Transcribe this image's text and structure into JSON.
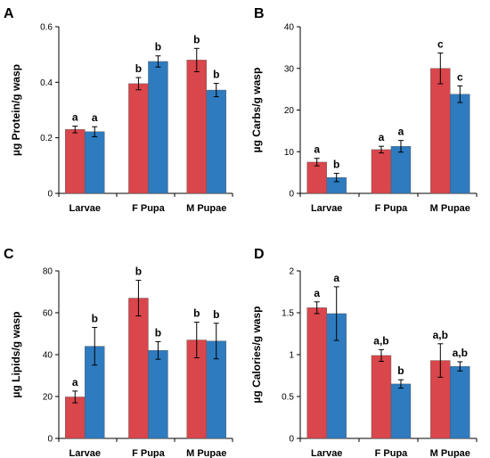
{
  "chart_data": [
    {
      "type": "bar",
      "panel": "A",
      "ylabel": "µg Protein/g wasp",
      "ylim": [
        0,
        0.6
      ],
      "yticks": [
        "0",
        "0.2",
        "0.4",
        "0.6"
      ],
      "ytick_values": [
        0,
        0.2,
        0.4,
        0.6
      ],
      "categories": [
        "Larvae",
        "F Pupa",
        "M Pupae"
      ],
      "series": [
        {
          "values": [
            0.23,
            0.395,
            0.48
          ],
          "errors": [
            0.012,
            0.022,
            0.042
          ],
          "labels": [
            "a",
            "b",
            "b"
          ]
        },
        {
          "values": [
            0.222,
            0.475,
            0.372
          ],
          "errors": [
            0.018,
            0.02,
            0.024
          ],
          "labels": [
            "a",
            "b",
            "b"
          ]
        }
      ]
    },
    {
      "type": "bar",
      "panel": "B",
      "ylabel": "µg Carbs/g wasp",
      "ylim": [
        0,
        40
      ],
      "yticks": [
        "0",
        "10",
        "20",
        "30",
        "40"
      ],
      "ytick_values": [
        0,
        10,
        20,
        30,
        40
      ],
      "categories": [
        "Larvae",
        "F Pupa",
        "M Pupae"
      ],
      "series": [
        {
          "values": [
            7.5,
            10.5,
            30.0
          ],
          "errors": [
            0.9,
            0.8,
            3.7
          ],
          "labels": [
            "a",
            "a",
            "c"
          ]
        },
        {
          "values": [
            3.8,
            11.3,
            23.8
          ],
          "errors": [
            1.0,
            1.4,
            2.0
          ],
          "labels": [
            "b",
            "a",
            "c"
          ]
        }
      ]
    },
    {
      "type": "bar",
      "panel": "C",
      "ylabel": "µg Lipids/g wasp",
      "ylim": [
        0,
        80
      ],
      "yticks": [
        "0",
        "20",
        "40",
        "60",
        "80"
      ],
      "ytick_values": [
        0,
        20,
        40,
        60,
        80
      ],
      "categories": [
        "Larvae",
        "F Pupa",
        "M Pupae"
      ],
      "series": [
        {
          "values": [
            19.8,
            67.0,
            47.0
          ],
          "errors": [
            2.8,
            8.5,
            8.5
          ],
          "labels": [
            "a",
            "b",
            "b"
          ]
        },
        {
          "values": [
            44.0,
            42.0,
            46.5
          ],
          "errors": [
            9.0,
            4.2,
            8.5
          ],
          "labels": [
            "b",
            "b",
            "b"
          ]
        }
      ]
    },
    {
      "type": "bar",
      "panel": "D",
      "ylabel": "µg Calories/g wasp",
      "ylim": [
        0,
        2
      ],
      "yticks": [
        "0",
        "0.5",
        "1",
        "1.5",
        "2"
      ],
      "ytick_values": [
        0,
        0.5,
        1,
        1.5,
        2
      ],
      "categories": [
        "Larvae",
        "F Pupa",
        "M Pupae"
      ],
      "series": [
        {
          "values": [
            1.56,
            0.99,
            0.93
          ],
          "errors": [
            0.07,
            0.07,
            0.2
          ],
          "labels": [
            "a",
            "a,b",
            "a,b"
          ]
        },
        {
          "values": [
            1.49,
            0.65,
            0.86
          ],
          "errors": [
            0.32,
            0.05,
            0.055
          ],
          "labels": [
            "a",
            "b",
            "a,b"
          ]
        }
      ]
    }
  ],
  "colors": {
    "red_series": "#d9464b",
    "blue_series": "#2e7bbf",
    "axis": "#000000"
  }
}
